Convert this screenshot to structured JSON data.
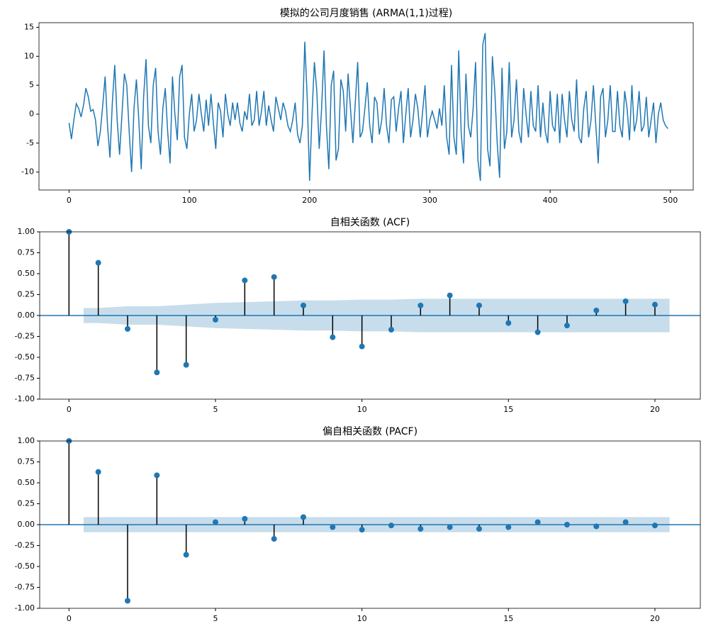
{
  "chart_data": [
    {
      "type": "line",
      "title": "模拟的公司月度销售 (ARMA(1,1)过程)",
      "color": "#1f77b4",
      "xlim": [
        -25,
        519
      ],
      "xticks": [
        0,
        100,
        200,
        300,
        400,
        500
      ],
      "ylim": [
        -13.1,
        15.8
      ],
      "yticks": [
        -10,
        -5,
        0,
        5,
        10,
        15
      ],
      "x": [
        0,
        2,
        4,
        6,
        8,
        10,
        12,
        14,
        16,
        18,
        20,
        22,
        24,
        26,
        28,
        30,
        32,
        34,
        36,
        38,
        40,
        42,
        44,
        46,
        48,
        50,
        52,
        54,
        56,
        58,
        60,
        62,
        64,
        66,
        68,
        70,
        72,
        74,
        76,
        78,
        80,
        82,
        84,
        86,
        88,
        90,
        92,
        94,
        96,
        98,
        100,
        102,
        104,
        106,
        108,
        110,
        112,
        114,
        116,
        118,
        120,
        122,
        124,
        126,
        128,
        130,
        132,
        134,
        136,
        138,
        140,
        142,
        144,
        146,
        148,
        150,
        152,
        154,
        156,
        158,
        160,
        162,
        164,
        166,
        168,
        170,
        172,
        174,
        176,
        178,
        180,
        182,
        184,
        186,
        188,
        190,
        192,
        194,
        196,
        198,
        200,
        202,
        204,
        206,
        208,
        210,
        212,
        214,
        216,
        218,
        220,
        222,
        224,
        226,
        228,
        230,
        232,
        234,
        236,
        238,
        240,
        242,
        244,
        246,
        248,
        250,
        252,
        254,
        256,
        258,
        260,
        262,
        264,
        266,
        268,
        270,
        272,
        274,
        276,
        278,
        280,
        282,
        284,
        286,
        288,
        290,
        292,
        294,
        296,
        298,
        300,
        302,
        304,
        306,
        308,
        310,
        312,
        314,
        316,
        318,
        320,
        322,
        324,
        326,
        328,
        330,
        332,
        334,
        336,
        338,
        340,
        342,
        344,
        346,
        348,
        350,
        352,
        354,
        356,
        358,
        360,
        362,
        364,
        366,
        368,
        370,
        372,
        374,
        376,
        378,
        380,
        382,
        384,
        386,
        388,
        390,
        392,
        394,
        396,
        398,
        400,
        402,
        404,
        406,
        408,
        410,
        412,
        414,
        416,
        418,
        420,
        422,
        424,
        426,
        428,
        430,
        432,
        434,
        436,
        438,
        440,
        442,
        444,
        446,
        448,
        450,
        452,
        454,
        456,
        458,
        460,
        462,
        464,
        466,
        468,
        470,
        472,
        474,
        476,
        478,
        480,
        482,
        484,
        486,
        488,
        490,
        492,
        494,
        496,
        498
      ],
      "values": [
        -1.5,
        -4.3,
        -1,
        1.8,
        1,
        -0.5,
        1.5,
        4.5,
        3,
        0.5,
        0.8,
        -1,
        -5.5,
        -3,
        1.5,
        6.5,
        -2,
        -7.5,
        2,
        8.5,
        -1,
        -7,
        0,
        7,
        5,
        -3,
        -10,
        1,
        6,
        -1,
        -9.5,
        3,
        9.5,
        -2,
        -5,
        5,
        8,
        -3,
        -7,
        1,
        4.5,
        -3,
        -8.5,
        6.5,
        0,
        -4.5,
        6.5,
        8.5,
        -4,
        -6,
        0,
        3.5,
        -3,
        -1,
        3.5,
        0,
        -3,
        2.5,
        -2,
        3.5,
        -1.5,
        -6,
        2,
        0.5,
        -4,
        3.5,
        0,
        -2,
        2,
        -1,
        2,
        -1.5,
        -3,
        0.5,
        -1,
        3.5,
        -2,
        -1,
        4,
        -2,
        0.5,
        4,
        -2,
        1.5,
        -1,
        -3,
        3,
        1,
        -1,
        2,
        0.5,
        -2,
        -3,
        -1,
        2,
        -3.5,
        -5,
        -2,
        12.5,
        3,
        -11.5,
        0,
        9,
        4,
        -6,
        1,
        11,
        -2,
        -9.5,
        5,
        7.5,
        -8,
        -6,
        6,
        4,
        -3,
        7,
        1,
        -5,
        2,
        9,
        -4,
        -3,
        1,
        5.5,
        -2,
        -5,
        3,
        2,
        -3.5,
        -1,
        4.5,
        -2,
        -5,
        2.5,
        3,
        -3,
        1,
        4,
        -5,
        0,
        4.5,
        -4,
        -1,
        3.5,
        1,
        -4,
        0.5,
        5,
        -4,
        -1,
        0.5,
        -1,
        -2.5,
        1,
        -2,
        5,
        -4,
        -7,
        8.5,
        -4,
        -7,
        11,
        -3,
        -8.5,
        7,
        -2,
        -4,
        1,
        9,
        -8,
        -11.5,
        12,
        14,
        -6,
        -9,
        10,
        4,
        -5,
        -11,
        8,
        -6,
        -3,
        9,
        -4,
        -1,
        6,
        -3,
        -5,
        4.5,
        0,
        -4,
        4,
        -2,
        -3,
        5,
        -4,
        2,
        -3,
        -5,
        4,
        -2,
        -3,
        3.5,
        -5,
        3.5,
        -1,
        -4,
        4,
        -1,
        -3,
        6,
        -4,
        -5,
        1,
        4,
        -4,
        -1,
        5,
        -2,
        -8.5,
        3,
        4.5,
        -4,
        -1,
        5,
        -3,
        -3,
        4,
        -2,
        -4,
        4,
        1,
        -4.5,
        5,
        -3,
        -1,
        4,
        -3,
        -2,
        3,
        -4,
        -1,
        2,
        -5,
        0,
        2,
        -1,
        -2,
        -2.5
      ]
    },
    {
      "type": "stem",
      "title": "自相关函数 (ACF)",
      "color": "#1f77b4",
      "stem_color": "#000000",
      "band_color": "#1f77b4",
      "xlim": [
        -1,
        21.55
      ],
      "xticks": [
        0,
        5,
        10,
        15,
        20
      ],
      "ylim": [
        -1,
        1
      ],
      "yticks": [
        {
          "value": -1,
          "label": "-1.00"
        },
        -0.75,
        {
          "value": -0.5,
          "label": "-0.50"
        },
        -0.25,
        {
          "value": 0,
          "label": "0.00"
        },
        0.25,
        {
          "value": 0.5,
          "label": "0.50"
        },
        0.75,
        {
          "value": 1,
          "label": "1.00"
        }
      ],
      "x": [
        0,
        1,
        2,
        3,
        4,
        5,
        6,
        7,
        8,
        9,
        10,
        11,
        12,
        13,
        14,
        15,
        16,
        17,
        18,
        19,
        20
      ],
      "values": [
        1,
        0.63,
        -0.16,
        -0.68,
        -0.59,
        -0.05,
        0.42,
        0.46,
        0.12,
        -0.26,
        -0.37,
        -0.17,
        0.12,
        0.24,
        0.12,
        -0.09,
        -0.2,
        -0.12,
        0.06,
        0.17,
        0.13
      ],
      "band": {
        "x": [
          1,
          2,
          3,
          4,
          5,
          6,
          7,
          8,
          9,
          10,
          11,
          12,
          13,
          14,
          15,
          16,
          17,
          18,
          19,
          20
        ],
        "upper": [
          0.09,
          0.11,
          0.11,
          0.13,
          0.15,
          0.16,
          0.17,
          0.18,
          0.18,
          0.19,
          0.19,
          0.2,
          0.2,
          0.2,
          0.2,
          0.2,
          0.2,
          0.2,
          0.2,
          0.2
        ],
        "lower": [
          -0.09,
          -0.11,
          -0.11,
          -0.13,
          -0.15,
          -0.16,
          -0.17,
          -0.18,
          -0.18,
          -0.19,
          -0.19,
          -0.2,
          -0.2,
          -0.2,
          -0.2,
          -0.2,
          -0.2,
          -0.2,
          -0.2,
          -0.2
        ]
      }
    },
    {
      "type": "stem",
      "title": "偏自相关函数 (PACF)",
      "color": "#1f77b4",
      "stem_color": "#000000",
      "band_color": "#1f77b4",
      "xlim": [
        -1,
        21.55
      ],
      "xticks": [
        0,
        5,
        10,
        15,
        20
      ],
      "ylim": [
        -1,
        1
      ],
      "yticks": [
        {
          "value": -1,
          "label": "-1.00"
        },
        -0.75,
        {
          "value": -0.5,
          "label": "-0.50"
        },
        -0.25,
        {
          "value": 0,
          "label": "0.00"
        },
        0.25,
        {
          "value": 0.5,
          "label": "0.50"
        },
        0.75,
        {
          "value": 1,
          "label": "1.00"
        }
      ],
      "x": [
        0,
        1,
        2,
        3,
        4,
        5,
        6,
        7,
        8,
        9,
        10,
        11,
        12,
        13,
        14,
        15,
        16,
        17,
        18,
        19,
        20
      ],
      "values": [
        1,
        0.63,
        -0.91,
        0.59,
        -0.36,
        0.03,
        0.07,
        -0.17,
        0.09,
        -0.03,
        -0.06,
        -0.01,
        -0.05,
        -0.03,
        -0.05,
        -0.03,
        0.03,
        0.0,
        -0.02,
        0.03,
        -0.01
      ],
      "band": {
        "x": [
          1,
          2,
          3,
          4,
          5,
          6,
          7,
          8,
          9,
          10,
          11,
          12,
          13,
          14,
          15,
          16,
          17,
          18,
          19,
          20
        ],
        "upper": [
          0.09,
          0.09,
          0.09,
          0.09,
          0.09,
          0.09,
          0.09,
          0.09,
          0.09,
          0.09,
          0.09,
          0.09,
          0.09,
          0.09,
          0.09,
          0.09,
          0.09,
          0.09,
          0.09,
          0.09
        ],
        "lower": [
          -0.09,
          -0.09,
          -0.09,
          -0.09,
          -0.09,
          -0.09,
          -0.09,
          -0.09,
          -0.09,
          -0.09,
          -0.09,
          -0.09,
          -0.09,
          -0.09,
          -0.09,
          -0.09,
          -0.09,
          -0.09,
          -0.09,
          -0.09
        ]
      }
    }
  ]
}
